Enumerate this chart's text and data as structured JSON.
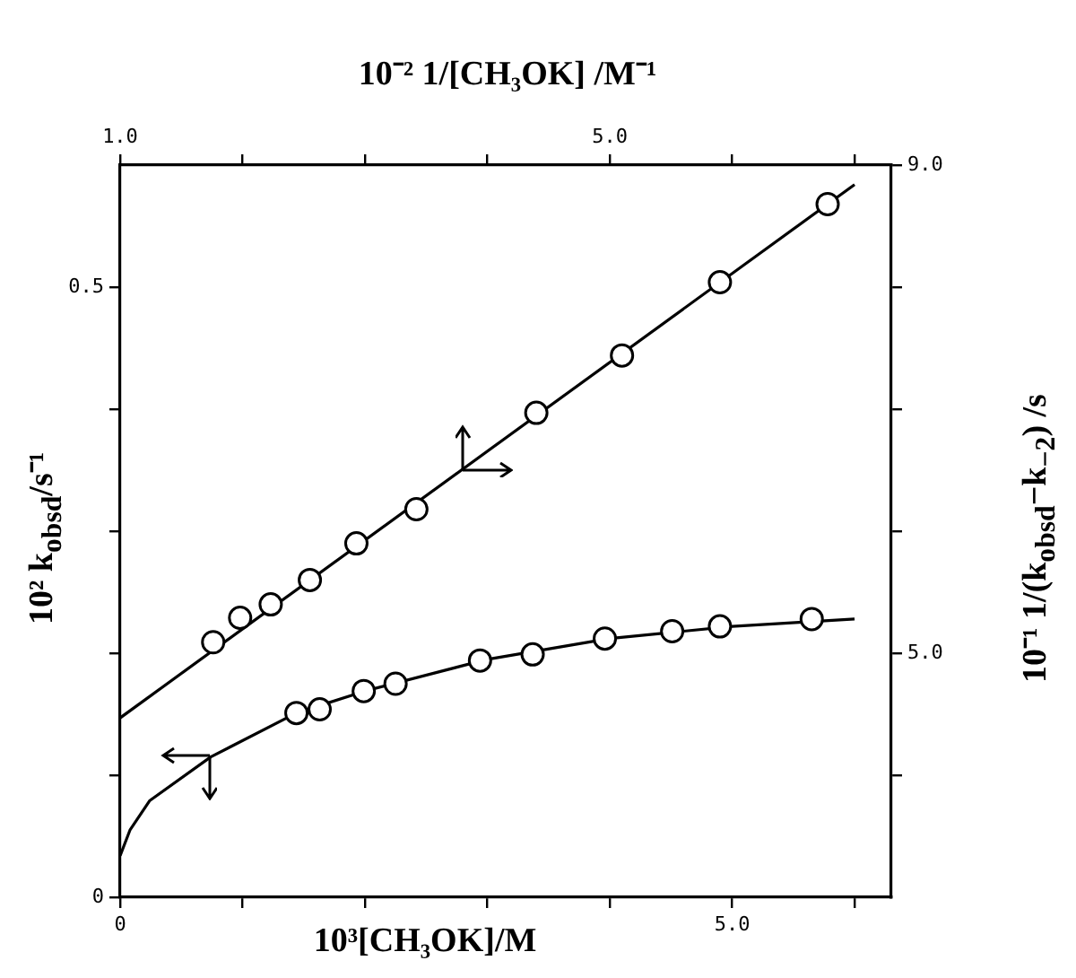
{
  "chart_data": [
    {
      "type": "scatter",
      "xlabel": "10³[CH₃OK]/M",
      "ylabel": "10² k$_{obsd}$/s⁻¹",
      "xlim": [
        0,
        6.3
      ],
      "xticks": [
        0,
        {
          "value": 1,
          "label": null
        },
        {
          "value": 2,
          "label": null
        },
        {
          "value": 3,
          "label": null
        },
        {
          "value": 4,
          "label": null
        },
        {
          "value": 5,
          "label": "5.0"
        },
        {
          "value": 6,
          "label": null
        }
      ],
      "ylim": [
        0,
        0.6
      ],
      "yticks": [
        0,
        {
          "value": 0.1,
          "label": null
        },
        {
          "value": 0.2,
          "label": null
        },
        {
          "value": 0.3,
          "label": null
        },
        {
          "value": 0.4,
          "label": null
        },
        {
          "value": 0.5,
          "label": "0.5"
        }
      ],
      "grid": false,
      "legend": false,
      "series": [
        {
          "type": "scatter",
          "color": "#000000",
          "marker": "circle",
          "x": [
            1.44,
            1.63,
            1.99,
            2.25,
            2.94,
            3.37,
            3.96,
            4.51,
            4.9,
            5.65
          ],
          "values": [
            0.151,
            0.154,
            0.169,
            0.175,
            0.194,
            0.199,
            0.212,
            0.218,
            0.222,
            0.228
          ]
        },
        {
          "type": "line",
          "color": "#000000",
          "marker": "none",
          "x": [
            0,
            0.08,
            0.24,
            0.74,
            1.44,
            2.0,
            3.0,
            4.0,
            5.0,
            6.0
          ],
          "values": [
            0.034,
            0.055,
            0.079,
            0.115,
            0.151,
            0.169,
            0.195,
            0.212,
            0.222,
            0.228
          ]
        }
      ]
    },
    {
      "type": "scatter",
      "xlabel": "10⁻² 1/[CH₃OK] /M⁻¹",
      "ylabel": "10⁻¹ 1/(k$_{obsd}$−k$_{−2}$) /s",
      "xlim": [
        1,
        7.3
      ],
      "xticks": [
        {
          "value": 1,
          "label": "1.0"
        },
        {
          "value": 2,
          "label": null
        },
        {
          "value": 3,
          "label": null
        },
        {
          "value": 4,
          "label": null
        },
        {
          "value": 5,
          "label": "5.0"
        },
        {
          "value": 6,
          "label": null
        },
        {
          "value": 7,
          "label": null
        }
      ],
      "ylim": [
        3,
        9
      ],
      "yticks": [
        {
          "value": 4,
          "label": null
        },
        {
          "value": 5,
          "label": "5.0"
        },
        {
          "value": 6,
          "label": null
        },
        {
          "value": 7,
          "label": null
        },
        {
          "value": 8,
          "label": null
        },
        {
          "value": 9,
          "label": "9.0"
        }
      ],
      "grid": false,
      "legend": false,
      "series": [
        {
          "type": "scatter",
          "color": "#000000",
          "marker": "circle",
          "x": [
            1.76,
            1.98,
            2.23,
            2.55,
            2.93,
            3.42,
            4.4,
            5.1,
            5.9,
            6.78
          ],
          "values": [
            5.09,
            5.29,
            5.4,
            5.6,
            5.9,
            6.18,
            6.97,
            7.44,
            8.04,
            8.68
          ]
        },
        {
          "type": "line",
          "color": "#000000",
          "marker": "none",
          "x": [
            1.0,
            7.0
          ],
          "values": [
            4.47,
            8.84
          ]
        }
      ]
    }
  ]
}
